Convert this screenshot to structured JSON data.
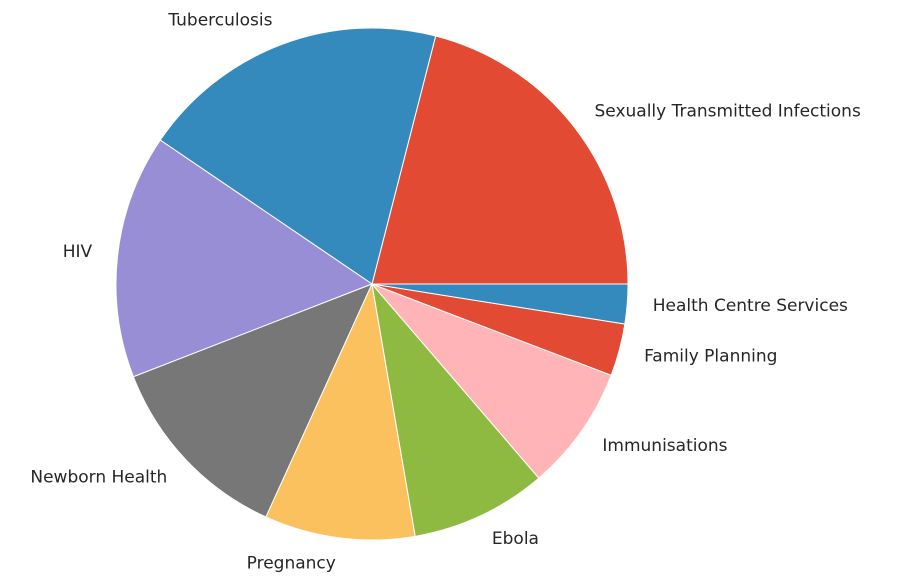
{
  "chart_data": {
    "type": "pie",
    "categories": [
      "Sexually Transmitted Infections",
      "Tuberculosis",
      "HIV",
      "Newborn Health",
      "Pregnancy",
      "Ebola",
      "Immunisations",
      "Family Planning",
      "Health Centre Services"
    ],
    "values": [
      21.0,
      19.5,
      15.4,
      12.3,
      9.5,
      8.6,
      7.9,
      3.3,
      2.5
    ],
    "colors": [
      "#E24A33",
      "#348ABD",
      "#988ED5",
      "#777777",
      "#FBC15E",
      "#8EBA42",
      "#FFB5B8",
      "#E24A33",
      "#348ABD"
    ],
    "start_angle": 0,
    "counterclock": true
  }
}
